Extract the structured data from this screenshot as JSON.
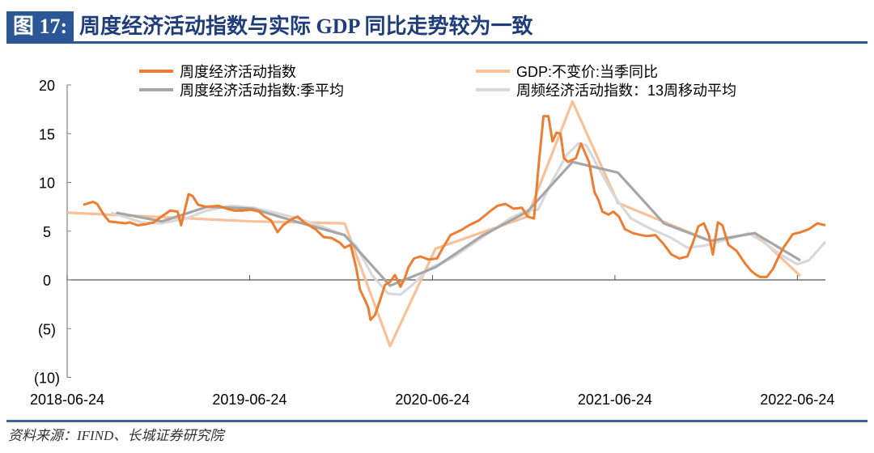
{
  "header": {
    "figure_label": "图 17:",
    "title": "周度经济活动指数与实际 GDP 同比走势较为一致"
  },
  "footer": {
    "source": "资料来源：IFIND、长城证券研究院"
  },
  "colors": {
    "weekly": "#ed7d31",
    "gdp": "#f8c197",
    "quarterly_avg": "#a6a6a6",
    "ma13": "#d9d9d9",
    "negative_label": "#ff0000",
    "title_blue": "#2b5796"
  },
  "chart_data": {
    "type": "line",
    "title": "",
    "xlabel": "",
    "ylabel": "",
    "ylim": [
      -10,
      20
    ],
    "yticks": [
      20,
      15,
      10,
      5,
      0,
      -5,
      -10
    ],
    "ytick_labels": [
      "20",
      "15",
      "10",
      "5",
      "0",
      "(5)",
      "(10)"
    ],
    "xticks": [
      "2018-06-24",
      "2019-06-24",
      "2020-06-24",
      "2021-06-24",
      "2022-06-24"
    ],
    "xtick_labels": [
      "2018-06-24",
      "2019-06-24",
      "2020-06-24",
      "2021-06-24",
      "2022-06-24"
    ],
    "grid": false,
    "legend_placement": "top",
    "series": [
      {
        "name": "周度经济活动指数",
        "color": "#ed7d31",
        "points": [
          [
            "2018-07-26",
            7.7
          ],
          [
            "2018-08-15",
            8.0
          ],
          [
            "2018-08-23",
            7.8
          ],
          [
            "2018-09-05",
            6.7
          ],
          [
            "2018-09-16",
            6.0
          ],
          [
            "2018-10-02",
            5.9
          ],
          [
            "2018-10-19",
            5.8
          ],
          [
            "2018-10-27",
            5.9
          ],
          [
            "2018-11-12",
            5.6
          ],
          [
            "2018-11-28",
            5.7
          ],
          [
            "2018-12-14",
            5.9
          ],
          [
            "2018-12-30",
            6.5
          ],
          [
            "2019-01-16",
            7.1
          ],
          [
            "2019-01-31",
            7.0
          ],
          [
            "2019-02-07",
            5.6
          ],
          [
            "2019-02-22",
            8.8
          ],
          [
            "2019-03-02",
            8.6
          ],
          [
            "2019-03-13",
            7.7
          ],
          [
            "2019-03-29",
            7.5
          ],
          [
            "2019-04-23",
            7.6
          ],
          [
            "2019-05-09",
            7.3
          ],
          [
            "2019-05-25",
            7.1
          ],
          [
            "2019-06-10",
            7.1
          ],
          [
            "2019-06-26",
            7.2
          ],
          [
            "2019-07-13",
            7.0
          ],
          [
            "2019-07-24",
            6.5
          ],
          [
            "2019-08-06",
            6.1
          ],
          [
            "2019-08-19",
            4.9
          ],
          [
            "2019-08-30",
            5.6
          ],
          [
            "2019-09-15",
            6.2
          ],
          [
            "2019-09-28",
            6.5
          ],
          [
            "2019-10-14",
            5.8
          ],
          [
            "2019-11-03",
            5.2
          ],
          [
            "2019-11-19",
            4.4
          ],
          [
            "2019-12-05",
            4.3
          ],
          [
            "2019-12-22",
            3.8
          ],
          [
            "2019-12-31",
            3.3
          ],
          [
            "2020-01-12",
            3.6
          ],
          [
            "2020-01-23",
            1.3
          ],
          [
            "2020-01-31",
            -1.0
          ],
          [
            "2020-02-11",
            -2.2
          ],
          [
            "2020-02-16",
            -2.8
          ],
          [
            "2020-02-21",
            -4.1
          ],
          [
            "2020-03-01",
            -3.6
          ],
          [
            "2020-03-09",
            -2.4
          ],
          [
            "2020-03-21",
            -0.5
          ],
          [
            "2020-03-31",
            -0.2
          ],
          [
            "2020-04-10",
            0.5
          ],
          [
            "2020-04-21",
            -0.7
          ],
          [
            "2020-04-29",
            0.1
          ],
          [
            "2020-05-07",
            1.3
          ],
          [
            "2020-05-18",
            2.2
          ],
          [
            "2020-05-31",
            2.4
          ],
          [
            "2020-06-16",
            2.1
          ],
          [
            "2020-07-03",
            2.2
          ],
          [
            "2020-07-16",
            3.4
          ],
          [
            "2020-07-30",
            4.6
          ],
          [
            "2020-08-20",
            5.1
          ],
          [
            "2020-09-05",
            5.6
          ],
          [
            "2020-09-25",
            6.1
          ],
          [
            "2020-10-16",
            7.0
          ],
          [
            "2020-11-01",
            7.6
          ],
          [
            "2020-11-17",
            7.8
          ],
          [
            "2020-12-03",
            7.3
          ],
          [
            "2020-12-20",
            7.4
          ],
          [
            "2020-12-31",
            6.5
          ],
          [
            "2021-01-13",
            6.3
          ],
          [
            "2021-01-23",
            12.1
          ],
          [
            "2021-02-01",
            16.8
          ],
          [
            "2021-02-11",
            16.8
          ],
          [
            "2021-02-19",
            14.2
          ],
          [
            "2021-02-27",
            15.1
          ],
          [
            "2021-03-07",
            15.0
          ],
          [
            "2021-03-14",
            12.5
          ],
          [
            "2021-03-22",
            12.1
          ],
          [
            "2021-03-30",
            12.3
          ],
          [
            "2021-04-07",
            12.5
          ],
          [
            "2021-04-17",
            14.0
          ],
          [
            "2021-05-03",
            12.1
          ],
          [
            "2021-05-14",
            9.0
          ],
          [
            "2021-05-22",
            8.2
          ],
          [
            "2021-05-30",
            7.0
          ],
          [
            "2021-06-11",
            6.7
          ],
          [
            "2021-06-21",
            7.0
          ],
          [
            "2021-07-02",
            6.5
          ],
          [
            "2021-07-14",
            5.2
          ],
          [
            "2021-07-30",
            4.8
          ],
          [
            "2021-08-15",
            4.6
          ],
          [
            "2021-08-28",
            4.5
          ],
          [
            "2021-09-13",
            4.6
          ],
          [
            "2021-09-29",
            3.7
          ],
          [
            "2021-10-15",
            2.6
          ],
          [
            "2021-10-31",
            2.2
          ],
          [
            "2021-11-16",
            2.4
          ],
          [
            "2021-11-27",
            3.8
          ],
          [
            "2021-12-08",
            5.5
          ],
          [
            "2021-12-19",
            5.8
          ],
          [
            "2021-12-29",
            4.6
          ],
          [
            "2022-01-06",
            2.6
          ],
          [
            "2022-01-16",
            5.9
          ],
          [
            "2022-01-25",
            5.6
          ],
          [
            "2022-02-06",
            3.6
          ],
          [
            "2022-02-22",
            3.0
          ],
          [
            "2022-03-11",
            1.7
          ],
          [
            "2022-03-24",
            0.9
          ],
          [
            "2022-04-03",
            0.5
          ],
          [
            "2022-04-11",
            0.3
          ],
          [
            "2022-04-24",
            0.3
          ],
          [
            "2022-05-06",
            1.1
          ],
          [
            "2022-05-17",
            2.3
          ],
          [
            "2022-05-27",
            3.3
          ],
          [
            "2022-06-07",
            4.1
          ],
          [
            "2022-06-15",
            4.7
          ],
          [
            "2022-07-01",
            4.9
          ],
          [
            "2022-07-17",
            5.2
          ],
          [
            "2022-08-03",
            5.8
          ],
          [
            "2022-08-19",
            5.6
          ]
        ]
      },
      {
        "name": "GDP:不变价:当季同比",
        "color": "#f8c197",
        "points": [
          [
            "2018-06-24",
            6.9
          ],
          [
            "2019-06-30",
            6.0
          ],
          [
            "2019-12-31",
            5.8
          ],
          [
            "2020-03-31",
            -6.8
          ],
          [
            "2020-06-30",
            3.2
          ],
          [
            "2020-12-31",
            6.5
          ],
          [
            "2021-03-31",
            18.3
          ],
          [
            "2021-06-30",
            7.9
          ],
          [
            "2021-12-31",
            4.0
          ],
          [
            "2022-03-31",
            4.8
          ],
          [
            "2022-06-30",
            0.4
          ]
        ]
      },
      {
        "name": "周度经济活动指数:季平均",
        "color": "#a6a6a6",
        "points": [
          [
            "2018-09-30",
            6.9
          ],
          [
            "2018-12-31",
            6.0
          ],
          [
            "2019-03-31",
            7.5
          ],
          [
            "2019-06-30",
            7.3
          ],
          [
            "2019-09-30",
            5.9
          ],
          [
            "2019-12-31",
            4.6
          ],
          [
            "2020-03-31",
            -0.6
          ],
          [
            "2020-06-30",
            1.3
          ],
          [
            "2020-09-30",
            4.5
          ],
          [
            "2020-12-31",
            7.0
          ],
          [
            "2021-03-31",
            12.1
          ],
          [
            "2021-06-30",
            11.0
          ],
          [
            "2021-09-30",
            5.8
          ],
          [
            "2021-12-31",
            4.0
          ],
          [
            "2022-03-31",
            4.8
          ],
          [
            "2022-06-30",
            2.0
          ]
        ]
      },
      {
        "name": "周频经济活动指数：13周移动平均",
        "color": "#d9d9d9",
        "points": [
          [
            "2018-09-20",
            6.9
          ],
          [
            "2018-11-20",
            5.9
          ],
          [
            "2018-12-30",
            5.8
          ],
          [
            "2019-02-17",
            6.3
          ],
          [
            "2019-03-29",
            7.1
          ],
          [
            "2019-05-17",
            7.6
          ],
          [
            "2019-07-01",
            7.4
          ],
          [
            "2019-08-14",
            6.9
          ],
          [
            "2019-09-29",
            6.3
          ],
          [
            "2019-11-19",
            5.4
          ],
          [
            "2019-12-30",
            4.6
          ],
          [
            "2020-01-23",
            3.5
          ],
          [
            "2020-02-24",
            0.5
          ],
          [
            "2020-03-27",
            -1.4
          ],
          [
            "2020-04-21",
            -1.5
          ],
          [
            "2020-05-15",
            -0.5
          ],
          [
            "2020-06-16",
            1.1
          ],
          [
            "2020-08-04",
            2.3
          ],
          [
            "2020-10-08",
            4.6
          ],
          [
            "2020-11-26",
            6.3
          ],
          [
            "2020-12-28",
            7.1
          ],
          [
            "2021-01-21",
            7.2
          ],
          [
            "2021-02-14",
            9.7
          ],
          [
            "2021-03-19",
            12.8
          ],
          [
            "2021-04-12",
            14.0
          ],
          [
            "2021-04-28",
            13.8
          ],
          [
            "2021-05-22",
            11.5
          ],
          [
            "2021-06-24",
            8.5
          ],
          [
            "2021-07-26",
            6.3
          ],
          [
            "2021-08-28",
            5.4
          ],
          [
            "2021-10-15",
            4.3
          ],
          [
            "2021-11-16",
            3.3
          ],
          [
            "2021-12-19",
            3.5
          ],
          [
            "2022-02-06",
            4.2
          ],
          [
            "2022-03-19",
            4.8
          ],
          [
            "2022-04-19",
            3.8
          ],
          [
            "2022-05-21",
            2.6
          ],
          [
            "2022-06-24",
            1.6
          ],
          [
            "2022-07-17",
            2.0
          ],
          [
            "2022-08-19",
            3.9
          ]
        ]
      }
    ]
  }
}
